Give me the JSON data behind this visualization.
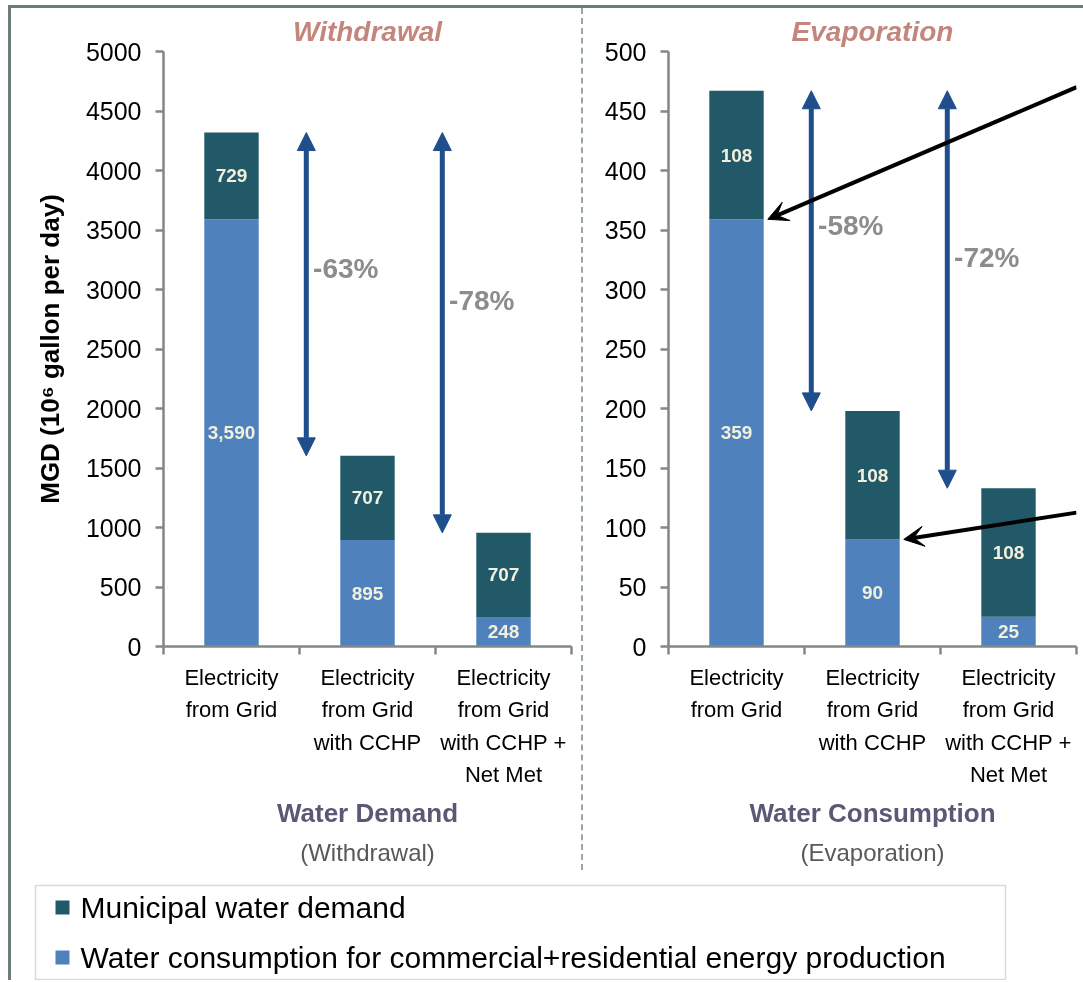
{
  "chart_data": [
    {
      "type": "bar",
      "title": "Withdrawal",
      "subtitle": "(Withdrawal)",
      "xlabel": "Water Demand",
      "ylabel": "MGD (10⁶ gallon per day)",
      "categories": [
        "Electricity from Grid",
        "Electricity from Grid with CCHP",
        "Electricity from Grid with CCHP + Net Met"
      ],
      "stacked": true,
      "series": [
        {
          "name": "Water consumption for commercial+residential energy production",
          "color": "#4f81bd",
          "values": [
            3590,
            895,
            248
          ],
          "value_labels": [
            "3,590",
            "895",
            "248"
          ]
        },
        {
          "name": "Municipal water demand",
          "color": "#215968",
          "values": [
            729,
            707,
            707
          ],
          "value_labels": [
            "729",
            "707",
            "707"
          ]
        }
      ],
      "ylim": [
        0,
        5000
      ],
      "yticks": [
        0,
        500,
        1000,
        1500,
        2000,
        2500,
        3000,
        3500,
        4000,
        4500,
        5000
      ],
      "legend": "bottom",
      "annotations": [
        "-63%",
        "-78%"
      ]
    },
    {
      "type": "bar",
      "title": "Evaporation",
      "subtitle": "(Evaporation)",
      "xlabel": "Water Consumption",
      "categories": [
        "Electricity from Grid",
        "Electricity from Grid with CCHP",
        "Electricity from Grid with CCHP + Net Met"
      ],
      "stacked": true,
      "series": [
        {
          "color": "#4f81bd",
          "values": [
            359,
            90,
            25
          ],
          "value_labels": [
            "359",
            "90",
            "25"
          ]
        },
        {
          "color": "#215968",
          "values": [
            108,
            108,
            108
          ],
          "value_labels": [
            "108",
            "108",
            "108"
          ]
        }
      ],
      "ylim": [
        0,
        500
      ],
      "yticks": [
        0,
        50,
        100,
        150,
        200,
        250,
        300,
        350,
        400,
        450,
        500
      ],
      "annotations": [
        "-58%",
        "-72%"
      ]
    }
  ]
}
